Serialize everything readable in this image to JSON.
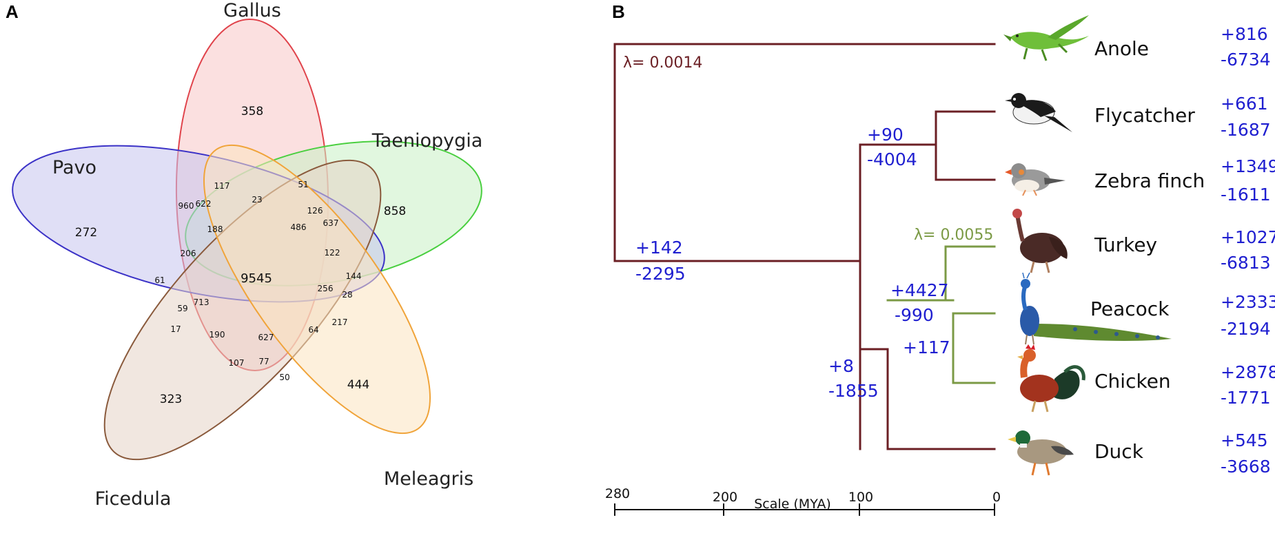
{
  "panel_a": {
    "letter": "A",
    "sets": [
      {
        "key": "gallus",
        "name": "Gallus",
        "stroke": "#e0434b",
        "fill": "#f7c6c6"
      },
      {
        "key": "taeniopygia",
        "name": "Taeniopygia",
        "stroke": "#49cf3f",
        "fill": "#c9f0c4"
      },
      {
        "key": "pavo",
        "name": "Pavo",
        "stroke": "#3b32c7",
        "fill": "#c6c5ee"
      },
      {
        "key": "ficedula",
        "name": "Ficedula",
        "stroke": "#8a5a3c",
        "fill": "#e6d3c6"
      },
      {
        "key": "meleagris",
        "name": "Meleagris",
        "stroke": "#f0a43a",
        "fill": "#fbe3bf"
      }
    ],
    "counts": [
      {
        "value": "358",
        "key": "v358"
      },
      {
        "value": "858",
        "key": "v858"
      },
      {
        "value": "272",
        "key": "v272"
      },
      {
        "value": "323",
        "key": "v323"
      },
      {
        "value": "444",
        "key": "v444"
      },
      {
        "value": "9545",
        "key": "v9545"
      },
      {
        "value": "117",
        "key": "v117"
      },
      {
        "value": "51",
        "key": "v51"
      },
      {
        "value": "960",
        "key": "v960"
      },
      {
        "value": "622",
        "key": "v622"
      },
      {
        "value": "23",
        "key": "v23"
      },
      {
        "value": "126",
        "key": "v126"
      },
      {
        "value": "188",
        "key": "v188"
      },
      {
        "value": "486",
        "key": "v486"
      },
      {
        "value": "637",
        "key": "v637"
      },
      {
        "value": "206",
        "key": "v206"
      },
      {
        "value": "122",
        "key": "v122"
      },
      {
        "value": "144",
        "key": "v144"
      },
      {
        "value": "61",
        "key": "v61"
      },
      {
        "value": "256",
        "key": "v256"
      },
      {
        "value": "28",
        "key": "v28"
      },
      {
        "value": "59",
        "key": "v59"
      },
      {
        "value": "713",
        "key": "v713"
      },
      {
        "value": "217",
        "key": "v217"
      },
      {
        "value": "17",
        "key": "v17"
      },
      {
        "value": "190",
        "key": "v190"
      },
      {
        "value": "627",
        "key": "v627"
      },
      {
        "value": "64",
        "key": "v64"
      },
      {
        "value": "107",
        "key": "v107"
      },
      {
        "value": "77",
        "key": "v77"
      },
      {
        "value": "50",
        "key": "v50"
      }
    ]
  },
  "panel_b": {
    "letter": "B",
    "branch_color": "#6b1f24",
    "galliform_color": "#7b9a45",
    "count_color": "#1f1fd0",
    "lambda_root": "λ= 0.0014",
    "lambda_galliformes": "λ= 0.0055",
    "species": [
      {
        "name": "Anole",
        "gain": "+816",
        "loss": "-6734",
        "icon": "lizard-icon"
      },
      {
        "name": "Flycatcher",
        "gain": "+661",
        "loss": "-1687",
        "icon": "flycatcher-icon"
      },
      {
        "name": "Zebra finch",
        "gain": "+1349",
        "loss": "-1611",
        "icon": "zebra-finch-icon"
      },
      {
        "name": "Turkey",
        "gain": "+1027",
        "loss": "-6813",
        "icon": "turkey-icon"
      },
      {
        "name": "Peacock",
        "gain": "+2333",
        "loss": "-2194",
        "icon": "peacock-icon"
      },
      {
        "name": "Chicken",
        "gain": "+2878",
        "loss": "-1771",
        "icon": "rooster-icon"
      },
      {
        "name": "Duck",
        "gain": "+545",
        "loss": "-3668",
        "icon": "duck-icon"
      }
    ],
    "internal_nodes": [
      {
        "key": "birds",
        "gain": "+142",
        "loss": "-2295"
      },
      {
        "key": "passerines",
        "gain": "+90",
        "loss": "-4004"
      },
      {
        "key": "galloanserae",
        "gain": "+8",
        "loss": "-1855"
      },
      {
        "key": "galliformes",
        "gain": "+4427",
        "loss": "-990"
      },
      {
        "key": "phasianinae",
        "gain": "+117",
        "loss": ""
      }
    ],
    "scale": {
      "label": "Scale (MYA)",
      "ticks": [
        "280",
        "200",
        "100",
        "0"
      ]
    }
  }
}
